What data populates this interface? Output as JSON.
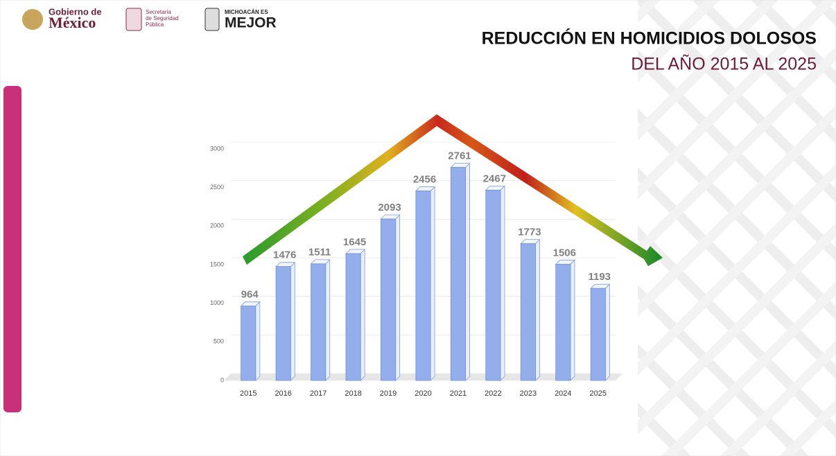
{
  "header": {
    "logos": [
      "Gobierno de",
      "México",
      "Secretaría",
      "de Seguridad",
      "Pública",
      "MICHOACÁN ES",
      "MEJOR"
    ]
  },
  "chart_data": {
    "type": "bar",
    "title": "REDUCCIÓN EN HOMICIDIOS DOLOSOS",
    "subtitle": "DEL AÑO 2015 AL 2025",
    "categories": [
      "2015",
      "2016",
      "2017",
      "2018",
      "2019",
      "2020",
      "2021",
      "2022",
      "2023",
      "2024",
      "2025"
    ],
    "values": [
      964,
      1476,
      1511,
      1645,
      2093,
      2456,
      2761,
      2467,
      1773,
      1506,
      1193
    ],
    "color": "#93aeea",
    "ylim": [
      0,
      3000
    ],
    "yticks": [
      0,
      500,
      1000,
      1500,
      2000,
      2500,
      3000
    ],
    "grid": true
  }
}
